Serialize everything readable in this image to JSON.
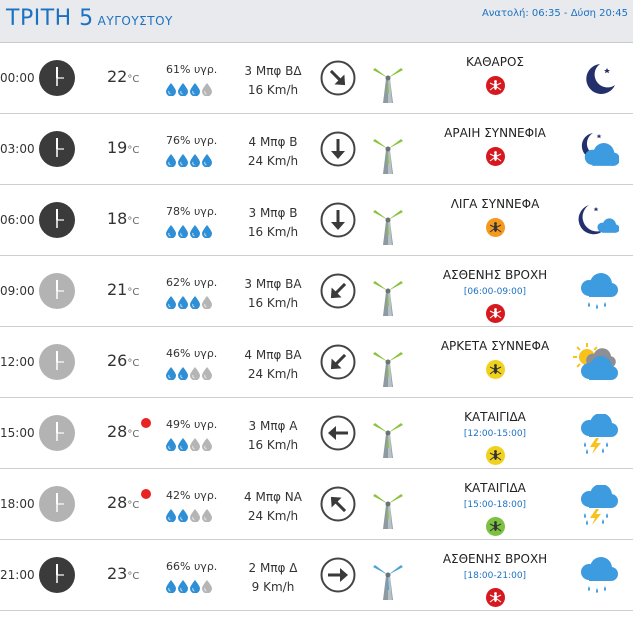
{
  "header": {
    "day": "ΤΡΙΤΗ 5",
    "month": "ΑΥΓΟΥΣΤΟΥ",
    "sun": "Ανατολή: 06:35  - Δύση 20:45"
  },
  "colors": {
    "accent": "#1b71c2",
    "hot": "#e82323",
    "drop_full": "#2e8fd6",
    "drop_empty": "#b5b5b5",
    "mosquito_red": "#d6191f",
    "mosquito_orange": "#f39a1e",
    "mosquito_yellow": "#f0d21e",
    "mosquito_green": "#7dc142"
  },
  "rows": [
    {
      "time": "00:00",
      "clock": "night",
      "temp": "22",
      "unit": "°C",
      "hot": false,
      "humidity": "61% υγρ.",
      "drops": 3,
      "wind": "3 Μπφ ΒΔ",
      "speed": "16 Km/h",
      "arrow": "arrow-down-right",
      "turbine": "green",
      "condition": "ΚΑΘΑΡΟΣ",
      "range": "",
      "mosquito": "red",
      "weather": "moon-icon"
    },
    {
      "time": "03:00",
      "clock": "night",
      "temp": "19",
      "unit": "°C",
      "hot": false,
      "humidity": "76% υγρ.",
      "drops": 4,
      "wind": "4 Μπφ Β",
      "speed": "24 Km/h",
      "arrow": "arrow-down",
      "turbine": "green",
      "condition": "ΑΡΑΙΗ ΣΥΝΝΕΦΙΑ",
      "range": "",
      "mosquito": "red",
      "weather": "moon-cloud-icon"
    },
    {
      "time": "06:00",
      "clock": "night",
      "temp": "18",
      "unit": "°C",
      "hot": false,
      "humidity": "78% υγρ.",
      "drops": 4,
      "wind": "3 Μπφ Β",
      "speed": "16 Km/h",
      "arrow": "arrow-down",
      "turbine": "green",
      "condition": "ΛΙΓΑ ΣΥΝΝΕΦΑ",
      "range": "",
      "mosquito": "orange",
      "weather": "moon-small-cloud-icon"
    },
    {
      "time": "09:00",
      "clock": "day",
      "temp": "21",
      "unit": "°C",
      "hot": false,
      "humidity": "62% υγρ.",
      "drops": 3,
      "wind": "3 Μπφ ΒΑ",
      "speed": "16 Km/h",
      "arrow": "arrow-down-left",
      "turbine": "green",
      "condition": "ΑΣΘΕΝΗΣ ΒΡΟΧΗ",
      "range": "[06:00-09:00]",
      "mosquito": "red",
      "weather": "rain-cloud-icon"
    },
    {
      "time": "12:00",
      "clock": "day",
      "temp": "26",
      "unit": "°C",
      "hot": false,
      "humidity": "46% υγρ.",
      "drops": 2,
      "wind": "4 Μπφ ΒΑ",
      "speed": "24 Km/h",
      "arrow": "arrow-down-left",
      "turbine": "green",
      "condition": "ΑΡΚΕΤΑ ΣΥΝΝΕΦΑ",
      "range": "",
      "mosquito": "yellow",
      "weather": "sun-cloud-icon"
    },
    {
      "time": "15:00",
      "clock": "day",
      "temp": "28",
      "unit": "°C",
      "hot": true,
      "humidity": "49% υγρ.",
      "drops": 2,
      "wind": "3 Μπφ Α",
      "speed": "16 Km/h",
      "arrow": "arrow-left",
      "turbine": "green",
      "condition": "ΚΑΤΑΙΓΙΔΑ",
      "range": "[12:00-15:00]",
      "mosquito": "yellow",
      "weather": "storm-cloud-icon"
    },
    {
      "time": "18:00",
      "clock": "day",
      "temp": "28",
      "unit": "°C",
      "hot": true,
      "humidity": "42% υγρ.",
      "drops": 2,
      "wind": "4 Μπφ ΝΑ",
      "speed": "24 Km/h",
      "arrow": "arrow-up-left",
      "turbine": "green",
      "condition": "ΚΑΤΑΙΓΙΔΑ",
      "range": "[15:00-18:00]",
      "mosquito": "green",
      "weather": "storm-cloud-icon"
    },
    {
      "time": "21:00",
      "clock": "night",
      "temp": "23",
      "unit": "°C",
      "hot": false,
      "humidity": "66% υγρ.",
      "drops": 3,
      "wind": "2 Μπφ Δ",
      "speed": "9 Km/h",
      "arrow": "arrow-right",
      "turbine": "blue",
      "condition": "ΑΣΘΕΝΗΣ ΒΡΟΧΗ",
      "range": "[18:00-21:00]",
      "mosquito": "red",
      "weather": "rain-cloud-icon"
    }
  ]
}
